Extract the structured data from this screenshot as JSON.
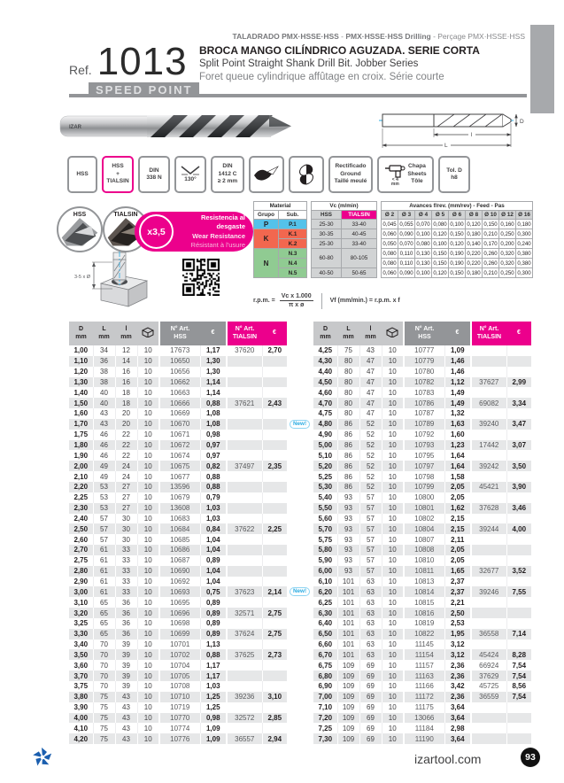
{
  "header": {
    "cat_part1": "TALADRADO PMX·HSSE·HSS",
    "cat_sep1": " - ",
    "cat_part2": "PMX·HSSE·HSS Drilling",
    "cat_sep2": " - ",
    "cat_part3": "Perçage PMX·HSSE·HSS",
    "ref_label": "Ref.",
    "ref_number": "1013",
    "brand_badge": "SPEED POINT",
    "title_es": "BROCA MANGO CILÍNDRICO AGUZADA. SERIE CORTA",
    "title_en": "Split Point Straight Shank Drill Bit. Jobber Series",
    "title_fr": "Foret queue cylindrique affûtage en croix. Série courte"
  },
  "diagram": {
    "d_label": "D",
    "l_label": "l",
    "L_label": "L"
  },
  "photo_brand": "IZAR",
  "badges": [
    {
      "label": "HSS"
    },
    {
      "label": "HSS\n+\nTIALSIN"
    },
    {
      "label": "DIN\n338 N"
    },
    {
      "label": "130°"
    },
    {
      "label": "DIN\n1412 C\n≥ 2 mm"
    },
    {
      "label": ""
    },
    {
      "label": ""
    },
    {
      "label": "Rectificado\nGround\nTaillé meulé"
    },
    {
      "label": "< 4\nmm",
      "label2": "Chapa\nSheets\nTôle"
    },
    {
      "label": "Tol. D\nh8"
    }
  ],
  "features": {
    "hss_label": "HSS",
    "tialsin_label": "TIALSIN",
    "multiplier": "x3,5",
    "wear_es": "Resistencia al desgaste",
    "wear_en": "Wear Resistance",
    "wear_fr": "Résistant à l'usure",
    "depth_note": "3-5 x Ø"
  },
  "cutting_table": {
    "material_header": "Material",
    "grupo_header": "Grupo",
    "sub_header": "Sub.",
    "vc_header": "Vc (m/min)",
    "hss_header": "HSS",
    "tialsin_header": "TIALSIN",
    "feed_header": "Avances f/rev. (mm/rev) - Feed - Pas",
    "diameters": [
      "Ø 2",
      "Ø 3",
      "Ø 4",
      "Ø 5",
      "Ø 6",
      "Ø 8",
      "Ø 10",
      "Ø 12",
      "Ø 16"
    ],
    "rows": [
      {
        "grupo": "P",
        "sub": "P.1",
        "vc_hss": "25-30",
        "vc_tialsin": "33-40",
        "feeds": [
          "0,045",
          "0,055",
          "0,070",
          "0,080",
          "0,100",
          "0,120",
          "0,150",
          "0,160",
          "0,180"
        ]
      },
      {
        "grupo": "K",
        "sub": "K.1",
        "vc_hss": "30-35",
        "vc_tialsin": "40-45",
        "feeds": [
          "0,060",
          "0,090",
          "0,100",
          "0,120",
          "0,150",
          "0,180",
          "0,210",
          "0,250",
          "0,300"
        ]
      },
      {
        "sub": "K.2",
        "vc_hss": "25-30",
        "vc_tialsin": "33-40",
        "feeds": [
          "0,050",
          "0,070",
          "0,080",
          "0,100",
          "0,120",
          "0,140",
          "0,170",
          "0,200",
          "0,240"
        ]
      },
      {
        "grupo": "N",
        "sub": "N.3",
        "vc_hss": "60-80",
        "vc_tialsin": "80-105",
        "feeds": [
          "0,080",
          "0,110",
          "0,130",
          "0,150",
          "0,190",
          "0,220",
          "0,260",
          "0,320",
          "0,380"
        ]
      },
      {
        "sub": "N.4",
        "feeds": [
          "0,080",
          "0,110",
          "0,130",
          "0,150",
          "0,190",
          "0,220",
          "0,260",
          "0,320",
          "0,380"
        ]
      },
      {
        "sub": "N.5",
        "vc_hss": "40-50",
        "vc_tialsin": "50-65",
        "feeds": [
          "0,060",
          "0,090",
          "0,100",
          "0,120",
          "0,150",
          "0,180",
          "0,210",
          "0,250",
          "0,300"
        ]
      }
    ]
  },
  "formula": {
    "rpm_label": "r.p.m. =",
    "rpm_num": "Vc x 1.000",
    "rpm_den": "π x ø",
    "vf": "Vf (mm/min.) = r.p.m. x f"
  },
  "table_headers": {
    "d": [
      "D",
      "mm"
    ],
    "L": [
      "L",
      "mm"
    ],
    "l": [
      "l",
      "mm"
    ],
    "art_hss": [
      "N° Art.",
      "HSS"
    ],
    "eur": "€",
    "art_tialsin": [
      "N° Art.",
      "TIALSIN"
    ]
  },
  "new_badge": "New!",
  "new_rows_d": [
    "4,80",
    "6,20"
  ],
  "left_rows": [
    [
      "1,00",
      "34",
      "12",
      "10",
      "17673",
      "1,17",
      "37620",
      "2,70"
    ],
    [
      "1,10",
      "36",
      "14",
      "10",
      "10650",
      "1,30",
      "",
      ""
    ],
    [
      "1,20",
      "38",
      "16",
      "10",
      "10656",
      "1,30",
      "",
      ""
    ],
    [
      "1,30",
      "38",
      "16",
      "10",
      "10662",
      "1,14",
      "",
      ""
    ],
    [
      "1,40",
      "40",
      "18",
      "10",
      "10663",
      "1,14",
      "",
      ""
    ],
    [
      "1,50",
      "40",
      "18",
      "10",
      "10666",
      "0,88",
      "37621",
      "2,43"
    ],
    [
      "1,60",
      "43",
      "20",
      "10",
      "10669",
      "1,08",
      "",
      ""
    ],
    [
      "1,70",
      "43",
      "20",
      "10",
      "10670",
      "1,08",
      "",
      ""
    ],
    [
      "1,75",
      "46",
      "22",
      "10",
      "10671",
      "0,98",
      "",
      ""
    ],
    [
      "1,80",
      "46",
      "22",
      "10",
      "10672",
      "0,97",
      "",
      ""
    ],
    [
      "1,90",
      "46",
      "22",
      "10",
      "10674",
      "0,97",
      "",
      ""
    ],
    [
      "2,00",
      "49",
      "24",
      "10",
      "10675",
      "0,82",
      "37497",
      "2,35"
    ],
    [
      "2,10",
      "49",
      "24",
      "10",
      "10677",
      "0,88",
      "",
      ""
    ],
    [
      "2,20",
      "53",
      "27",
      "10",
      "13596",
      "0,88",
      "",
      ""
    ],
    [
      "2,25",
      "53",
      "27",
      "10",
      "10679",
      "0,79",
      "",
      ""
    ],
    [
      "2,30",
      "53",
      "27",
      "10",
      "13608",
      "1,03",
      "",
      ""
    ],
    [
      "2,40",
      "57",
      "30",
      "10",
      "10683",
      "1,03",
      "",
      ""
    ],
    [
      "2,50",
      "57",
      "30",
      "10",
      "10684",
      "0,84",
      "37622",
      "2,25"
    ],
    [
      "2,60",
      "57",
      "30",
      "10",
      "10685",
      "1,04",
      "",
      ""
    ],
    [
      "2,70",
      "61",
      "33",
      "10",
      "10686",
      "1,04",
      "",
      ""
    ],
    [
      "2,75",
      "61",
      "33",
      "10",
      "10687",
      "0,89",
      "",
      ""
    ],
    [
      "2,80",
      "61",
      "33",
      "10",
      "10690",
      "1,04",
      "",
      ""
    ],
    [
      "2,90",
      "61",
      "33",
      "10",
      "10692",
      "1,04",
      "",
      ""
    ],
    [
      "3,00",
      "61",
      "33",
      "10",
      "10693",
      "0,75",
      "37623",
      "2,14"
    ],
    [
      "3,10",
      "65",
      "36",
      "10",
      "10695",
      "0,89",
      "",
      ""
    ],
    [
      "3,20",
      "65",
      "36",
      "10",
      "10696",
      "0,89",
      "32571",
      "2,75"
    ],
    [
      "3,25",
      "65",
      "36",
      "10",
      "10698",
      "0,89",
      "",
      ""
    ],
    [
      "3,30",
      "65",
      "36",
      "10",
      "10699",
      "0,89",
      "37624",
      "2,75"
    ],
    [
      "3,40",
      "70",
      "39",
      "10",
      "10701",
      "1,13",
      "",
      ""
    ],
    [
      "3,50",
      "70",
      "39",
      "10",
      "10702",
      "0,88",
      "37625",
      "2,73"
    ],
    [
      "3,60",
      "70",
      "39",
      "10",
      "10704",
      "1,17",
      "",
      ""
    ],
    [
      "3,70",
      "70",
      "39",
      "10",
      "10705",
      "1,17",
      "",
      ""
    ],
    [
      "3,75",
      "70",
      "39",
      "10",
      "10708",
      "1,03",
      "",
      ""
    ],
    [
      "3,80",
      "75",
      "43",
      "10",
      "10710",
      "1,25",
      "39236",
      "3,10"
    ],
    [
      "3,90",
      "75",
      "43",
      "10",
      "10719",
      "1,25",
      "",
      ""
    ],
    [
      "4,00",
      "75",
      "43",
      "10",
      "10770",
      "0,98",
      "32572",
      "2,85"
    ],
    [
      "4,10",
      "75",
      "43",
      "10",
      "10774",
      "1,09",
      "",
      ""
    ],
    [
      "4,20",
      "75",
      "43",
      "10",
      "10776",
      "1,09",
      "36557",
      "2,94"
    ]
  ],
  "right_rows": [
    [
      "4,25",
      "75",
      "43",
      "10",
      "10777",
      "1,09",
      "",
      ""
    ],
    [
      "4,30",
      "80",
      "47",
      "10",
      "10779",
      "1,46",
      "",
      ""
    ],
    [
      "4,40",
      "80",
      "47",
      "10",
      "10780",
      "1,46",
      "",
      ""
    ],
    [
      "4,50",
      "80",
      "47",
      "10",
      "10782",
      "1,12",
      "37627",
      "2,99"
    ],
    [
      "4,60",
      "80",
      "47",
      "10",
      "10783",
      "1,49",
      "",
      ""
    ],
    [
      "4,70",
      "80",
      "47",
      "10",
      "10786",
      "1,49",
      "69082",
      "3,34"
    ],
    [
      "4,75",
      "80",
      "47",
      "10",
      "10787",
      "1,32",
      "",
      ""
    ],
    [
      "4,80",
      "86",
      "52",
      "10",
      "10789",
      "1,63",
      "39240",
      "3,47"
    ],
    [
      "4,90",
      "86",
      "52",
      "10",
      "10792",
      "1,60",
      "",
      ""
    ],
    [
      "5,00",
      "86",
      "52",
      "10",
      "10793",
      "1,23",
      "17442",
      "3,07"
    ],
    [
      "5,10",
      "86",
      "52",
      "10",
      "10795",
      "1,64",
      "",
      ""
    ],
    [
      "5,20",
      "86",
      "52",
      "10",
      "10797",
      "1,64",
      "39242",
      "3,50"
    ],
    [
      "5,25",
      "86",
      "52",
      "10",
      "10798",
      "1,58",
      "",
      ""
    ],
    [
      "5,30",
      "86",
      "52",
      "10",
      "10799",
      "2,05",
      "45421",
      "3,90"
    ],
    [
      "5,40",
      "93",
      "57",
      "10",
      "10800",
      "2,05",
      "",
      ""
    ],
    [
      "5,50",
      "93",
      "57",
      "10",
      "10801",
      "1,62",
      "37628",
      "3,46"
    ],
    [
      "5,60",
      "93",
      "57",
      "10",
      "10802",
      "2,15",
      "",
      ""
    ],
    [
      "5,70",
      "93",
      "57",
      "10",
      "10804",
      "2,15",
      "39244",
      "4,00"
    ],
    [
      "5,75",
      "93",
      "57",
      "10",
      "10807",
      "2,11",
      "",
      ""
    ],
    [
      "5,80",
      "93",
      "57",
      "10",
      "10808",
      "2,05",
      "",
      ""
    ],
    [
      "5,90",
      "93",
      "57",
      "10",
      "10810",
      "2,05",
      "",
      ""
    ],
    [
      "6,00",
      "93",
      "57",
      "10",
      "10811",
      "1,65",
      "32677",
      "3,52"
    ],
    [
      "6,10",
      "101",
      "63",
      "10",
      "10813",
      "2,37",
      "",
      ""
    ],
    [
      "6,20",
      "101",
      "63",
      "10",
      "10814",
      "2,37",
      "39246",
      "7,55"
    ],
    [
      "6,25",
      "101",
      "63",
      "10",
      "10815",
      "2,21",
      "",
      ""
    ],
    [
      "6,30",
      "101",
      "63",
      "10",
      "10816",
      "2,50",
      "",
      ""
    ],
    [
      "6,40",
      "101",
      "63",
      "10",
      "10819",
      "2,53",
      "",
      ""
    ],
    [
      "6,50",
      "101",
      "63",
      "10",
      "10822",
      "1,95",
      "36558",
      "7,14"
    ],
    [
      "6,60",
      "101",
      "63",
      "10",
      "11145",
      "3,12",
      "",
      ""
    ],
    [
      "6,70",
      "101",
      "63",
      "10",
      "11154",
      "3,12",
      "45424",
      "8,28"
    ],
    [
      "6,75",
      "109",
      "69",
      "10",
      "11157",
      "2,36",
      "66924",
      "7,54"
    ],
    [
      "6,80",
      "109",
      "69",
      "10",
      "11163",
      "2,36",
      "37629",
      "7,54"
    ],
    [
      "6,90",
      "109",
      "69",
      "10",
      "11166",
      "3,42",
      "45725",
      "8,56"
    ],
    [
      "7,00",
      "109",
      "69",
      "10",
      "11172",
      "2,36",
      "36559",
      "7,54"
    ],
    [
      "7,10",
      "109",
      "69",
      "10",
      "11175",
      "3,64",
      "",
      ""
    ],
    [
      "7,20",
      "109",
      "69",
      "10",
      "13066",
      "3,64",
      "",
      ""
    ],
    [
      "7,25",
      "109",
      "69",
      "10",
      "11184",
      "2,98",
      "",
      ""
    ],
    [
      "7,30",
      "109",
      "69",
      "10",
      "11190",
      "3,64",
      "",
      ""
    ]
  ],
  "footer": {
    "website": "izartool.com",
    "page": "93"
  }
}
